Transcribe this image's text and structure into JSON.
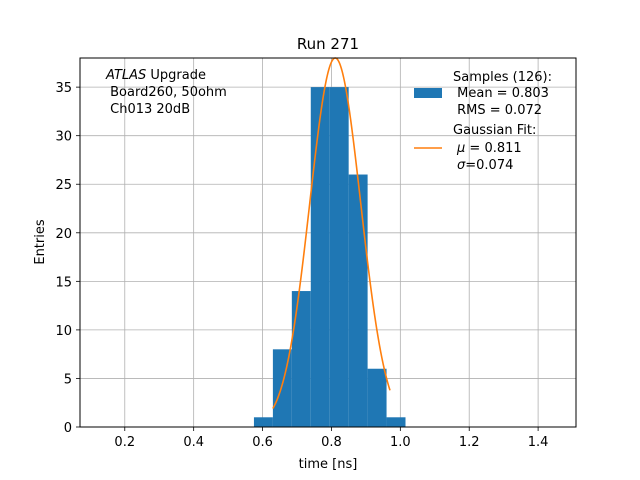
{
  "chart_data": {
    "type": "bar",
    "title": "Run 271",
    "xlabel": "time [ns]",
    "ylabel": "Entries",
    "xlim": [
      0.07,
      1.51
    ],
    "ylim": [
      0,
      38.0
    ],
    "grid": true,
    "legend_placement": "top-right",
    "xticks": [
      0.2,
      0.4,
      0.6,
      0.8,
      1.0,
      1.2,
      1.4
    ],
    "xtick_labels": [
      "0.2",
      "0.4",
      "0.6",
      "0.8",
      "1.0",
      "1.2",
      "1.4"
    ],
    "yticks": [
      0,
      5,
      10,
      15,
      20,
      25,
      30,
      35
    ],
    "ytick_labels": [
      "0",
      "5",
      "10",
      "15",
      "20",
      "25",
      "30",
      "35"
    ],
    "histogram": {
      "name": "Samples (126):",
      "color": "#1f77b4",
      "bin_edges": [
        0.575,
        0.63,
        0.685,
        0.74,
        0.795,
        0.85,
        0.905,
        0.96,
        1.015
      ],
      "counts": [
        1,
        8,
        14,
        35,
        35,
        26,
        6,
        1
      ]
    },
    "fit": {
      "name": "Gaussian Fit:",
      "color": "#ff7f0e",
      "amplitude": 38.0,
      "mu": 0.811,
      "sigma": 0.074,
      "x_range": [
        0.63,
        0.97
      ]
    },
    "annotation": {
      "line1_italic": "ATLAS",
      "line1_rest": " Upgrade",
      "line2": " Board260, 50ohm",
      "line3": " Ch013 20dB"
    },
    "legend": {
      "samples_line1": "Samples (126):",
      "samples_line2": " Mean = 0.803",
      "samples_line3": " RMS = 0.072",
      "fit_line1": "Gaussian Fit:",
      "fit_mu_symbol": "μ",
      "fit_mu_text": " = 0.811",
      "fit_sigma_symbol": "σ",
      "fit_sigma_text": "=0.074"
    }
  }
}
